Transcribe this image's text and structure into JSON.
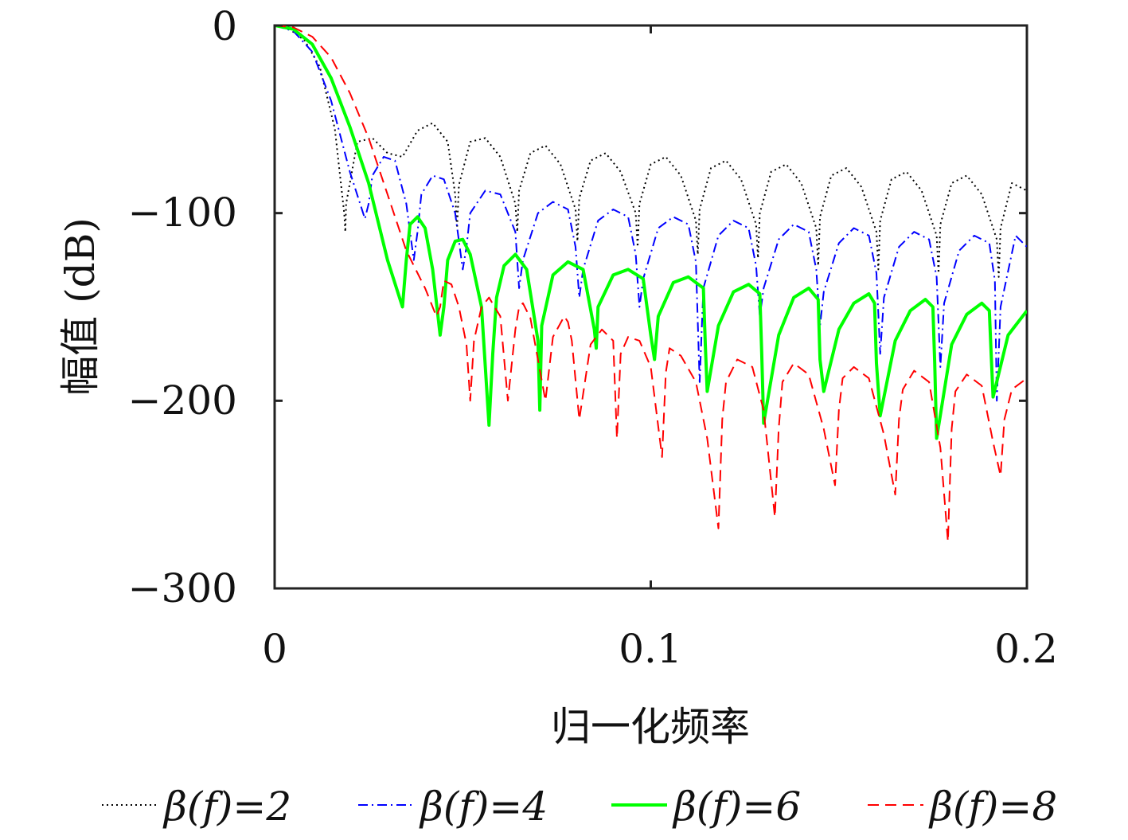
{
  "chart_data": {
    "type": "line",
    "title": "",
    "xlabel": "归一化频率",
    "ylabel": "幅值 (dB)",
    "xlim": [
      0,
      0.2
    ],
    "ylim": [
      -300,
      0
    ],
    "xticks": [
      0,
      0.1,
      0.2
    ],
    "xtick_labels": [
      "0",
      "0.1",
      "0.2"
    ],
    "yticks": [
      0,
      -100,
      -200,
      -300
    ],
    "ytick_labels": [
      "0",
      "−100",
      "−200",
      "−300"
    ],
    "grid": false,
    "legend_position": "bottom",
    "series": [
      {
        "name": "β(f)=2",
        "color": "#000000",
        "style": "dotted",
        "x": [
          0,
          0.004,
          0.008,
          0.012,
          0.016,
          0.0185,
          0.0188,
          0.019,
          0.022,
          0.026,
          0.03,
          0.034,
          0.038,
          0.042,
          0.046,
          0.048,
          0.0485,
          0.049,
          0.052,
          0.056,
          0.06,
          0.064,
          0.0645,
          0.065,
          0.068,
          0.072,
          0.076,
          0.08,
          0.0805,
          0.081,
          0.084,
          0.088,
          0.092,
          0.096,
          0.0965,
          0.097,
          0.1,
          0.104,
          0.108,
          0.112,
          0.1125,
          0.113,
          0.116,
          0.12,
          0.124,
          0.128,
          0.1285,
          0.129,
          0.132,
          0.136,
          0.14,
          0.144,
          0.1445,
          0.145,
          0.148,
          0.152,
          0.156,
          0.16,
          0.1605,
          0.161,
          0.164,
          0.168,
          0.172,
          0.176,
          0.1765,
          0.177,
          0.18,
          0.184,
          0.188,
          0.192,
          0.1925,
          0.193,
          0.196,
          0.2
        ],
        "y": [
          0,
          -2,
          -8,
          -22,
          -55,
          -100,
          -110,
          -95,
          -62,
          -60,
          -68,
          -70,
          -56,
          -52,
          -62,
          -90,
          -108,
          -85,
          -62,
          -60,
          -70,
          -95,
          -110,
          -88,
          -68,
          -64,
          -74,
          -98,
          -115,
          -92,
          -72,
          -68,
          -78,
          -100,
          -118,
          -95,
          -74,
          -70,
          -80,
          -104,
          -122,
          -98,
          -76,
          -72,
          -82,
          -106,
          -124,
          -100,
          -78,
          -74,
          -84,
          -108,
          -128,
          -102,
          -80,
          -76,
          -86,
          -110,
          -130,
          -104,
          -82,
          -78,
          -88,
          -112,
          -132,
          -106,
          -84,
          -80,
          -90,
          -114,
          -134,
          -108,
          -84,
          -88
        ]
      },
      {
        "name": "β(f)=4",
        "color": "#0000ff",
        "style": "dashdot",
        "x": [
          0,
          0.005,
          0.01,
          0.015,
          0.02,
          0.024,
          0.025,
          0.026,
          0.029,
          0.032,
          0.035,
          0.037,
          0.038,
          0.039,
          0.042,
          0.045,
          0.048,
          0.05,
          0.051,
          0.052,
          0.056,
          0.06,
          0.064,
          0.065,
          0.066,
          0.07,
          0.074,
          0.078,
          0.08,
          0.081,
          0.082,
          0.086,
          0.09,
          0.094,
          0.096,
          0.097,
          0.098,
          0.102,
          0.106,
          0.11,
          0.112,
          0.113,
          0.114,
          0.118,
          0.122,
          0.126,
          0.128,
          0.129,
          0.13,
          0.134,
          0.138,
          0.142,
          0.144,
          0.145,
          0.146,
          0.15,
          0.154,
          0.158,
          0.16,
          0.161,
          0.162,
          0.166,
          0.17,
          0.174,
          0.176,
          0.177,
          0.178,
          0.182,
          0.186,
          0.19,
          0.1915,
          0.192,
          0.193,
          0.197,
          0.2
        ],
        "y": [
          0,
          -3,
          -14,
          -40,
          -78,
          -103,
          -95,
          -80,
          -70,
          -72,
          -95,
          -125,
          -110,
          -90,
          -80,
          -82,
          -100,
          -130,
          -118,
          -100,
          -88,
          -90,
          -110,
          -140,
          -125,
          -100,
          -94,
          -98,
          -118,
          -145,
          -130,
          -104,
          -98,
          -102,
          -122,
          -150,
          -135,
          -108,
          -102,
          -106,
          -126,
          -190,
          -140,
          -112,
          -104,
          -108,
          -128,
          -155,
          -140,
          -114,
          -106,
          -110,
          -130,
          -160,
          -142,
          -116,
          -108,
          -112,
          -132,
          -175,
          -145,
          -118,
          -110,
          -114,
          -134,
          -182,
          -148,
          -120,
          -112,
          -116,
          -136,
          -200,
          -150,
          -112,
          -118
        ]
      },
      {
        "name": "β(f)=6",
        "color": "#00ff00",
        "style": "solid",
        "x": [
          0,
          0.005,
          0.01,
          0.015,
          0.02,
          0.025,
          0.03,
          0.034,
          0.035,
          0.036,
          0.038,
          0.04,
          0.042,
          0.044,
          0.045,
          0.046,
          0.048,
          0.05,
          0.052,
          0.055,
          0.057,
          0.058,
          0.059,
          0.061,
          0.064,
          0.067,
          0.07,
          0.0705,
          0.071,
          0.074,
          0.078,
          0.082,
          0.085,
          0.0855,
          0.086,
          0.09,
          0.094,
          0.098,
          0.1,
          0.101,
          0.102,
          0.106,
          0.11,
          0.114,
          0.1145,
          0.115,
          0.118,
          0.122,
          0.126,
          0.129,
          0.1295,
          0.13,
          0.134,
          0.138,
          0.142,
          0.1445,
          0.145,
          0.146,
          0.15,
          0.154,
          0.158,
          0.1595,
          0.16,
          0.161,
          0.165,
          0.169,
          0.173,
          0.175,
          0.1755,
          0.176,
          0.18,
          0.184,
          0.188,
          0.19,
          0.1905,
          0.191,
          0.195,
          0.2
        ],
        "y": [
          0,
          -2,
          -10,
          -28,
          -54,
          -84,
          -125,
          -150,
          -125,
          -106,
          -102,
          -108,
          -130,
          -165,
          -150,
          -125,
          -115,
          -114,
          -122,
          -150,
          -213,
          -175,
          -145,
          -128,
          -122,
          -130,
          -168,
          -205,
          -160,
          -133,
          -126,
          -130,
          -162,
          -172,
          -150,
          -133,
          -130,
          -135,
          -165,
          -178,
          -155,
          -137,
          -134,
          -140,
          -170,
          -195,
          -160,
          -142,
          -138,
          -143,
          -175,
          -212,
          -165,
          -145,
          -140,
          -146,
          -178,
          -195,
          -162,
          -148,
          -143,
          -148,
          -180,
          -208,
          -168,
          -152,
          -146,
          -150,
          -180,
          -220,
          -170,
          -154,
          -148,
          -152,
          -175,
          -198,
          -165,
          -152
        ]
      },
      {
        "name": "β(f)=8",
        "color": "#ff0000",
        "style": "dashed",
        "x": [
          0,
          0.005,
          0.01,
          0.015,
          0.02,
          0.025,
          0.03,
          0.035,
          0.04,
          0.043,
          0.044,
          0.045,
          0.047,
          0.049,
          0.051,
          0.052,
          0.053,
          0.055,
          0.057,
          0.06,
          0.062,
          0.064,
          0.065,
          0.066,
          0.068,
          0.072,
          0.074,
          0.077,
          0.078,
          0.079,
          0.081,
          0.084,
          0.087,
          0.09,
          0.091,
          0.092,
          0.094,
          0.097,
          0.1,
          0.103,
          0.104,
          0.105,
          0.108,
          0.112,
          0.115,
          0.118,
          0.119,
          0.12,
          0.123,
          0.127,
          0.13,
          0.133,
          0.134,
          0.135,
          0.138,
          0.142,
          0.146,
          0.149,
          0.15,
          0.151,
          0.154,
          0.158,
          0.162,
          0.165,
          0.166,
          0.167,
          0.17,
          0.174,
          0.177,
          0.179,
          0.18,
          0.181,
          0.184,
          0.188,
          0.191,
          0.193,
          0.194,
          0.196,
          0.2
        ],
        "y": [
          0,
          -1,
          -6,
          -17,
          -36,
          -60,
          -90,
          -120,
          -140,
          -155,
          -150,
          -136,
          -138,
          -150,
          -170,
          -200,
          -168,
          -150,
          -145,
          -155,
          -200,
          -162,
          -150,
          -148,
          -156,
          -200,
          -166,
          -155,
          -158,
          -168,
          -210,
          -170,
          -162,
          -168,
          -220,
          -175,
          -166,
          -168,
          -182,
          -230,
          -185,
          -172,
          -176,
          -190,
          -220,
          -268,
          -210,
          -190,
          -178,
          -182,
          -205,
          -262,
          -215,
          -190,
          -180,
          -186,
          -215,
          -245,
          -205,
          -188,
          -182,
          -188,
          -218,
          -250,
          -210,
          -194,
          -184,
          -190,
          -225,
          -275,
          -215,
          -195,
          -186,
          -192,
          -222,
          -240,
          -210,
          -194,
          -188
        ]
      }
    ]
  }
}
